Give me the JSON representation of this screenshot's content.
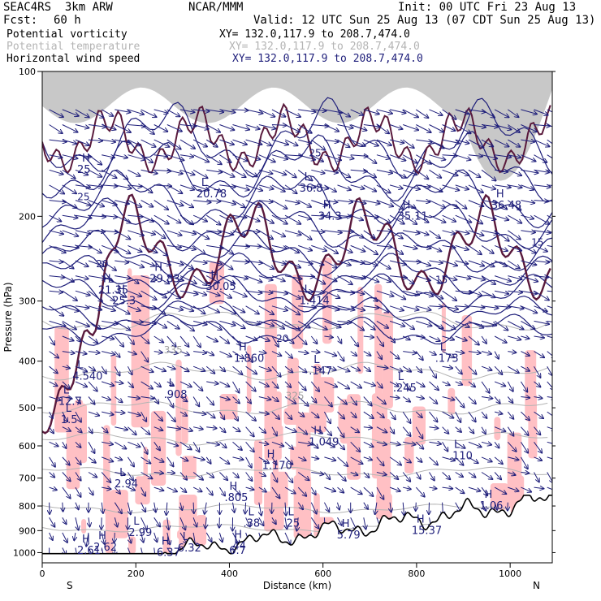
{
  "header": {
    "model": "SEAC4RS  3km ARW",
    "center": "NCAR/MMM",
    "init": "Init: 00 UTC Fri 23 Aug 13",
    "fcst_label": "Fcst:",
    "fcst_value": "60 h",
    "valid": "Valid: 12 UTC Sun 25 Aug 13 (07 CDT Sun 25 Aug 13)"
  },
  "legend": [
    {
      "name": "Potential vorticity",
      "xy": "XY= 132.0,117.9 to 208.7,474.0",
      "color": "#000000",
      "xy_color": "#000000"
    },
    {
      "name": "Potential temperature",
      "xy": "XY= 132.0,117.9 to 208.7,474.0",
      "color": "#b4b4b4",
      "xy_color": "#b4b4b4"
    },
    {
      "name": "Horizontal wind speed",
      "xy": "XY= 132.0,117.9 to 208.7,474.0",
      "color": "#000000",
      "xy_color": "#1e1e7a"
    }
  ],
  "colors": {
    "pv_fill": "#ffc0c4",
    "pv_contour": "#5a1a3c",
    "wind_contour": "#1e1e7a",
    "theta_contour": "#b4b4b4",
    "terrain_shade": "#7a7a7a"
  },
  "chart_data": {
    "type": "cross-section",
    "xlabel": "Distance (km)",
    "ylabel": "Pressure (hPa)",
    "xlim": [
      0,
      1090
    ],
    "ylim": [
      1050,
      100
    ],
    "y_scale": "log",
    "xticks": [
      0,
      200,
      400,
      600,
      800,
      1000
    ],
    "yticks": [
      100,
      200,
      300,
      400,
      500,
      600,
      700,
      800,
      900,
      1000
    ],
    "endpoint_labels": {
      "left": "S",
      "right": "N"
    },
    "wind_speed_contour_labels": [
      {
        "text": "25",
        "x": 75,
        "p": 185
      },
      {
        "text": "25",
        "x": 570,
        "p": 150
      },
      {
        "text": "20",
        "x": 115,
        "p": 255
      },
      {
        "text": "20",
        "x": 500,
        "p": 365
      },
      {
        "text": "15",
        "x": 840,
        "p": 275
      },
      {
        "text": "15",
        "x": 1045,
        "p": 230
      }
    ],
    "theta_contour_labels": [
      {
        "text": "335",
        "x": 260,
        "p": 385
      },
      {
        "text": "325",
        "x": 520,
        "p": 480
      }
    ],
    "extrema": [
      {
        "type": "H",
        "value": "25",
        "x": 85,
        "p": 160
      },
      {
        "type": "H",
        "value": "21.35",
        "x": 130,
        "p": 285
      },
      {
        "type": "H",
        "value": "25.3",
        "x": 160,
        "p": 300
      },
      {
        "type": "H",
        "value": "29.83",
        "x": 240,
        "p": 270
      },
      {
        "type": "H",
        "value": "30.05",
        "x": 360,
        "p": 280
      },
      {
        "type": "L",
        "value": "20.78",
        "x": 340,
        "p": 180
      },
      {
        "type": "L",
        "value": "1.414",
        "x": 560,
        "p": 300
      },
      {
        "type": "L",
        "value": "36.8",
        "x": 560,
        "p": 175
      },
      {
        "type": "H",
        "value": "34.3",
        "x": 600,
        "p": 200
      },
      {
        "type": "H",
        "value": "35.11",
        "x": 770,
        "p": 200
      },
      {
        "type": "H",
        "value": "36.48",
        "x": 970,
        "p": 190
      },
      {
        "type": "H",
        "value": "1.860",
        "x": 420,
        "p": 395
      },
      {
        "type": "L",
        "value": ".147",
        "x": 580,
        "p": 420
      },
      {
        "type": "L",
        "value": ".173",
        "x": 850,
        "p": 395
      },
      {
        "type": "L",
        "value": "4.540",
        "x": 75,
        "p": 430
      },
      {
        "type": "L",
        "value": ".245",
        "x": 760,
        "p": 455
      },
      {
        "type": "L",
        "value": "12.7",
        "x": 45,
        "p": 485
      },
      {
        "type": "L",
        "value": ".908",
        "x": 270,
        "p": 470
      },
      {
        "type": "L",
        "value": "1.5",
        "x": 50,
        "p": 530
      },
      {
        "type": "H",
        "value": "1.049",
        "x": 580,
        "p": 590
      },
      {
        "type": "L",
        "value": ".110",
        "x": 880,
        "p": 630
      },
      {
        "type": "H",
        "value": "1.170",
        "x": 480,
        "p": 660
      },
      {
        "type": "L",
        "value": "2.94",
        "x": 165,
        "p": 720
      },
      {
        "type": "H",
        "value": ".805",
        "x": 400,
        "p": 770
      },
      {
        "type": "H",
        "value": "1.06",
        "x": 945,
        "p": 800
      },
      {
        "type": "L",
        "value": ".38",
        "x": 440,
        "p": 870
      },
      {
        "type": "L",
        "value": ".25",
        "x": 525,
        "p": 870
      },
      {
        "type": "L",
        "value": "2.99",
        "x": 195,
        "p": 910
      },
      {
        "type": "H",
        "value": "5.79",
        "x": 640,
        "p": 920
      },
      {
        "type": "H",
        "value": "15.37",
        "x": 800,
        "p": 900
      },
      {
        "type": "H",
        "value": "2.62",
        "x": 120,
        "p": 975
      },
      {
        "type": "H",
        "value": "2.61",
        "x": 85,
        "p": 990
      },
      {
        "type": "L",
        "value": "6.32",
        "x": 300,
        "p": 980
      },
      {
        "type": "H",
        "value": "6.37",
        "x": 255,
        "p": 1000
      },
      {
        "type": "H",
        "value": ".44",
        "x": 410,
        "p": 970
      },
      {
        "type": "L",
        "value": "6.7",
        "x": 410,
        "p": 990
      }
    ]
  }
}
